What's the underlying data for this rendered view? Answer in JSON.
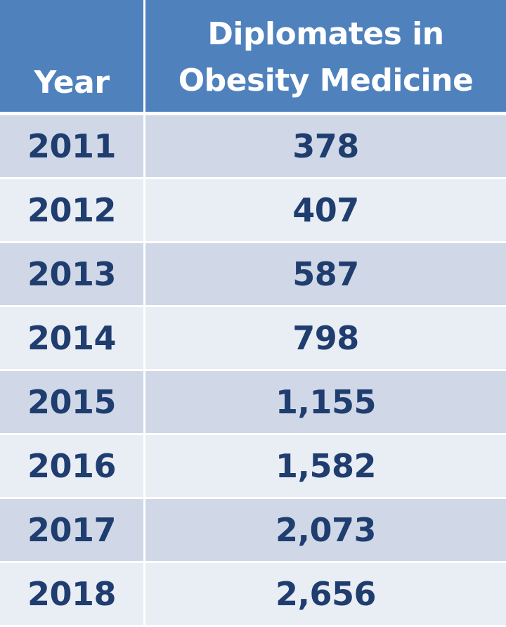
{
  "colors": {
    "header_bg": "#4f81bd",
    "header_text": "#ffffff",
    "row_dark": "#d0d8e8",
    "row_light": "#e9edf4",
    "body_text": "#1f3d6e"
  },
  "chart_data": {
    "type": "table",
    "columns": [
      "Year",
      "Diplomates in Obesity Medicine"
    ],
    "header": {
      "year": "Year",
      "value_line1": "Diplomates in",
      "value_line2": "Obesity Medicine"
    },
    "rows": [
      {
        "year": "2011",
        "value": "378"
      },
      {
        "year": "2012",
        "value": "407"
      },
      {
        "year": "2013",
        "value": "587"
      },
      {
        "year": "2014",
        "value": "798"
      },
      {
        "year": "2015",
        "value": "1,155"
      },
      {
        "year": "2016",
        "value": "1,582"
      },
      {
        "year": "2017",
        "value": "2,073"
      },
      {
        "year": "2018",
        "value": "2,656"
      }
    ]
  }
}
